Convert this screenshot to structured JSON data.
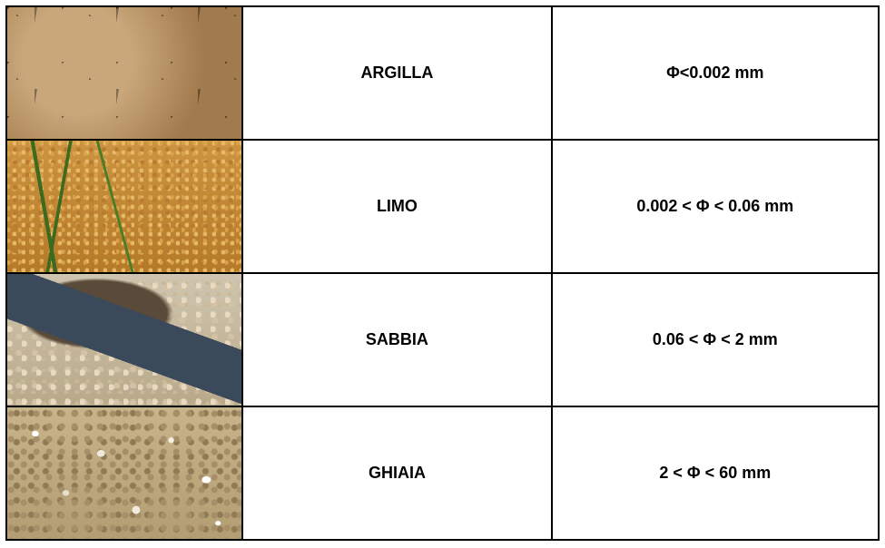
{
  "table": {
    "border_color": "#000000",
    "background_color": "#ffffff",
    "font_family": "Verdana",
    "font_weight": "bold",
    "font_size_pt": 14,
    "text_color": "#000000",
    "rows": [
      {
        "image_name": "argilla-image",
        "image_alt": "cracked dry clay soil",
        "name": "ARGILLA",
        "size": "Φ<0.002 mm"
      },
      {
        "image_name": "limo-image",
        "image_alt": "silt soil with small green sprouts",
        "name": "LIMO",
        "size": "0.002 < Φ < 0.06 mm"
      },
      {
        "image_name": "sabbia-image",
        "image_alt": "sand on a shovel blade",
        "name": "SABBIA",
        "size": "0.06 < Φ < 2 mm"
      },
      {
        "image_name": "ghiaia-image",
        "image_alt": "gravel and small pebbles",
        "name": "GHIAIA",
        "size": "2 < Φ < 60 mm"
      }
    ]
  }
}
